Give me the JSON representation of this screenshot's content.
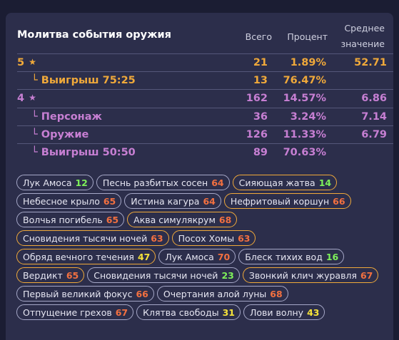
{
  "table": {
    "title": "Молитва события оружия",
    "col_total": "Всего",
    "col_percent": "Процент",
    "col_avg_line1": "Среднее",
    "col_avg_line2": "значение",
    "rows": [
      {
        "label": "5",
        "star": "★",
        "total": "21",
        "percent": "1.89%",
        "avg": "52.71"
      },
      {
        "label": "└ Выигрыш 75:25",
        "total": "13",
        "percent": "76.47%",
        "avg": ""
      },
      {
        "label": "4",
        "star": "★",
        "total": "162",
        "percent": "14.57%",
        "avg": "6.86"
      },
      {
        "label": "└ Персонаж",
        "total": "36",
        "percent": "3.24%",
        "avg": "7.14"
      },
      {
        "label": "└ Оружие",
        "total": "126",
        "percent": "11.33%",
        "avg": "6.79"
      },
      {
        "label": "└ Выигрыш 50:50",
        "total": "89",
        "percent": "70.63%",
        "avg": ""
      }
    ]
  },
  "colors": {
    "five_star": "#f0a93a",
    "four_star": "#c77fd3",
    "pity_low": "#7ef05a",
    "pity_mid": "#f6e33a",
    "pity_high": "#f27040"
  },
  "history": [
    {
      "name": "Лук Амоса",
      "count": "12",
      "tone": "green",
      "featured": false
    },
    {
      "name": "Песнь разбитых сосен",
      "count": "64",
      "tone": "orange",
      "featured": false
    },
    {
      "name": "Сияющая жатва",
      "count": "14",
      "tone": "green",
      "featured": true
    },
    {
      "name": "Небесное крыло",
      "count": "65",
      "tone": "orange",
      "featured": false
    },
    {
      "name": "Истина кагура",
      "count": "64",
      "tone": "orange",
      "featured": false
    },
    {
      "name": "Нефритовый коршун",
      "count": "66",
      "tone": "orange",
      "featured": true
    },
    {
      "name": "Волчья погибель",
      "count": "65",
      "tone": "orange",
      "featured": false
    },
    {
      "name": "Аква симулякрум",
      "count": "68",
      "tone": "orange",
      "featured": true
    },
    {
      "name": "Сновидения тысячи ночей",
      "count": "63",
      "tone": "orange",
      "featured": true
    },
    {
      "name": "Посох Хомы",
      "count": "63",
      "tone": "orange",
      "featured": true
    },
    {
      "name": "Обряд вечного течения",
      "count": "47",
      "tone": "yellow",
      "featured": true
    },
    {
      "name": "Лук Амоса",
      "count": "70",
      "tone": "orange",
      "featured": false
    },
    {
      "name": "Блеск тихих вод",
      "count": "16",
      "tone": "green",
      "featured": false
    },
    {
      "name": "Вердикт",
      "count": "65",
      "tone": "orange",
      "featured": true
    },
    {
      "name": "Сновидения тысячи ночей",
      "count": "23",
      "tone": "green",
      "featured": false
    },
    {
      "name": "Звонкий клич журавля",
      "count": "67",
      "tone": "orange",
      "featured": true
    },
    {
      "name": "Первый великий фокус",
      "count": "66",
      "tone": "orange",
      "featured": false
    },
    {
      "name": "Очертания алой луны",
      "count": "68",
      "tone": "orange",
      "featured": false
    },
    {
      "name": "Отпущение грехов",
      "count": "67",
      "tone": "orange",
      "featured": false
    },
    {
      "name": "Клятва свободы",
      "count": "31",
      "tone": "yellow",
      "featured": false
    },
    {
      "name": "Лови волну",
      "count": "43",
      "tone": "yellow",
      "featured": false
    }
  ]
}
